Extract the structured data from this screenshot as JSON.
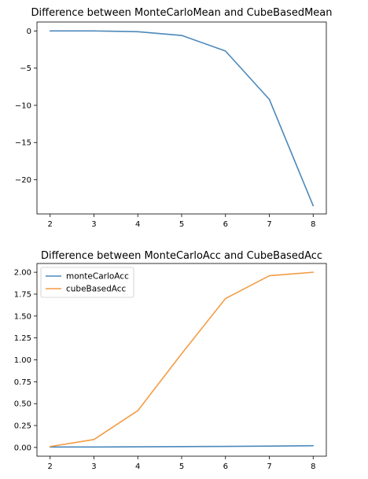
{
  "chart_data": [
    {
      "type": "line",
      "title": "Difference between MonteCarloMean and CubeBasedMean",
      "xlabel": "",
      "ylabel": "",
      "x": [
        2,
        3,
        4,
        5,
        6,
        7,
        8
      ],
      "xticks": [
        2,
        3,
        4,
        5,
        6,
        7,
        8
      ],
      "yticks": [
        0,
        -5,
        -10,
        -15,
        -20
      ],
      "ytick_labels": [
        "0",
        "−5",
        "−10",
        "−15",
        "−20"
      ],
      "ylim": [
        -24.6,
        1.2
      ],
      "xlim": [
        1.7,
        8.3
      ],
      "grid": false,
      "series": [
        {
          "values": [
            0.0,
            0.0,
            -0.1,
            -0.6,
            -2.7,
            -9.2,
            -23.5
          ],
          "color": "#4c88bb"
        }
      ]
    },
    {
      "type": "line",
      "title": "Difference between MonteCarloAcc and CubeBasedAcc",
      "xlabel": "",
      "ylabel": "",
      "x": [
        2,
        3,
        4,
        5,
        6,
        7,
        8
      ],
      "xticks": [
        2,
        3,
        4,
        5,
        6,
        7,
        8
      ],
      "yticks": [
        0.0,
        0.25,
        0.5,
        0.75,
        1.0,
        1.25,
        1.5,
        1.75,
        2.0
      ],
      "ytick_labels": [
        "0.00",
        "0.25",
        "0.50",
        "0.75",
        "1.00",
        "1.25",
        "1.50",
        "1.75",
        "2.00"
      ],
      "ylim": [
        -0.1,
        2.1
      ],
      "xlim": [
        1.7,
        8.3
      ],
      "grid": false,
      "legend": "top-left",
      "series": [
        {
          "name": "monteCarloAcc",
          "values": [
            0.005,
            0.005,
            0.007,
            0.009,
            0.012,
            0.015,
            0.02
          ],
          "color": "#4c88bb"
        },
        {
          "name": "cubeBasedAcc",
          "values": [
            0.01,
            0.09,
            0.42,
            1.07,
            1.7,
            1.96,
            2.0
          ],
          "color": "#f39c45"
        }
      ]
    }
  ]
}
